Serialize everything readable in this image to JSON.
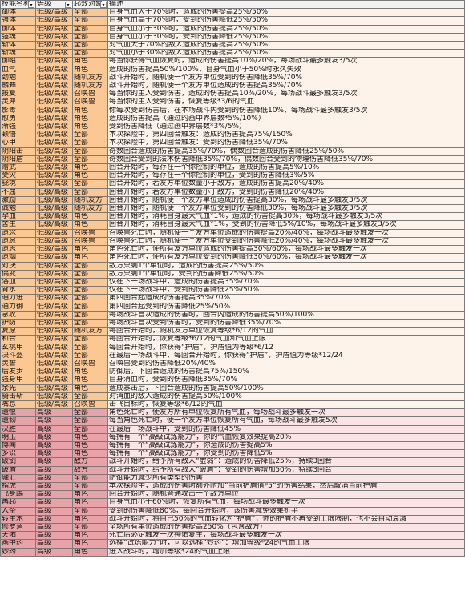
{
  "headers": {
    "name": "技能名称",
    "level": "等级",
    "target": "起效对象",
    "desc": "描述"
  },
  "rows": [
    {
      "n": "御体",
      "l": "低级/高级",
      "t": "全部",
      "d": "自身气血大于70%时，造成的伤害提高25%/50%",
      "c": "o"
    },
    {
      "n": "强体",
      "l": "低级/高级",
      "t": "全部",
      "d": "自身气血高于70%时，受到的伤害降低25%/50%",
      "c": "o"
    },
    {
      "n": "御体",
      "l": "低级/高级",
      "t": "全部",
      "d": "自身气血小于30%时，造成的伤害提高25%/50%",
      "c": "o"
    },
    {
      "n": "强魂",
      "l": "低级/高级",
      "t": "全部",
      "d": "自身气血小于30%时，受到的伤害降低25%/50%",
      "c": "o"
    },
    {
      "n": "斩体",
      "l": "低级/高级",
      "t": "全部",
      "d": "对气血大于70%的敌人造成的伤害提高25%/50%",
      "c": "o"
    },
    {
      "n": "斩魂",
      "l": "低级/高级",
      "t": "全部",
      "d": "对气血小于30%的敌人造成的伤害提高25%/50%",
      "c": "o"
    },
    {
      "n": "御昭",
      "l": "低级/高级",
      "t": "角色",
      "d": "每当你获得气血恢复时，造成的伤害提高10%/20%，每场战斗最多触发3/5次",
      "c": "o"
    },
    {
      "n": "血气",
      "l": "低级/高级",
      "t": "角色",
      "d": "造成的伤害提高50%/100%，自身气血小于50%时永久失效",
      "c": "o"
    },
    {
      "n": "劲勉",
      "l": "低级/高级",
      "t": "随机友方",
      "d": "战斗开始时，随机使一个友方单位受到的伤害降低35%/70%",
      "c": "o"
    },
    {
      "n": "麟舞",
      "l": "低级/高级",
      "t": "随机友方",
      "d": "战斗开始时，随机使一个友方单位造成的伤害提高35%/70%",
      "c": "o"
    },
    {
      "n": "报复",
      "l": "低级/高级",
      "t": "召唤兽",
      "d": "每当你的主人受到伤害，造成的伤害提高10%/20%，每场战斗最多触发3/5次",
      "c": "o"
    },
    {
      "n": "灵犀",
      "l": "低级/高级",
      "t": "召唤兽",
      "d": "每当你的主人受到伤害，恢复等级*3/6的气血",
      "c": "o"
    },
    {
      "n": "影毒",
      "l": "低级/高级",
      "t": "角色",
      "d": "你每次受到伤害后，在本场战斗内受到的伤害降低10%，每场战斗最多触发3/5次",
      "c": "o"
    },
    {
      "n": "愈勇",
      "l": "低级/高级",
      "t": "角色",
      "d": "造成的伤害提高（通过的画中界层数*5%/10%）",
      "c": "o"
    },
    {
      "n": "渐强",
      "l": "低级/高级",
      "t": "角色",
      "d": "受到伤害降低（通过画中界层数*3%/5%）",
      "c": "o"
    },
    {
      "n": "顿悟",
      "l": "低级/高级",
      "t": "全部",
      "d": "本次探险中，第四回合触发：造成的伤害提高75%/150%",
      "c": "o"
    },
    {
      "n": "心甲",
      "l": "低级/高级",
      "t": "全部",
      "d": "本次探险中，第四回合触发：受到的伤害降低35%/70%",
      "c": "o"
    },
    {
      "n": "阴阳击",
      "l": "低级/高级",
      "t": "全部",
      "d": "奇数回合造成的伤害提高35%/70%，偶数回合造成的伤害降低25%/50%",
      "c": "o"
    },
    {
      "n": "阴阳盾",
      "l": "低级/高级",
      "t": "全部",
      "d": "奇数回合受到的法术伤害降低35%/70%，偶数回合受到的物理伤害降低35%/70%",
      "c": "o"
    },
    {
      "n": "赠武",
      "l": "低级/高级",
      "t": "角色",
      "d": "回合开始时，每存在一个你控制的单位，造成的伤害提高5%/10%",
      "c": "o"
    },
    {
      "n": "受灾",
      "l": "低级/高级",
      "t": "角色",
      "d": "回合开始时，每存在一个你控制的单位，受到的伤害降低3%/5%",
      "c": "o"
    },
    {
      "n": "骁境",
      "l": "低级/高级",
      "t": "全部",
      "d": "回合开始时，若友方单位数量小于敌方，造成的伤害提高20%/40%",
      "c": "o"
    },
    {
      "n": "不屈",
      "l": "低级/高级",
      "t": "全部",
      "d": "回合开始时，若友方单位数量小于敌方，受到的伤害降低20%/40%",
      "c": "o"
    },
    {
      "n": "激励",
      "l": "低级/高级",
      "t": "随机友方",
      "d": "回合开始时，随机使一个友方单位造成的伤害提高30%，每场战斗最多触发3/5次",
      "c": "o"
    },
    {
      "n": "诚勉",
      "l": "低级/高级",
      "t": "随机友方",
      "d": "回合开始时，随机使一个友方单位受到的伤害降低30%，每场战斗最多触发3/5次",
      "c": "o"
    },
    {
      "n": "孕血",
      "l": "低级/高级",
      "t": "角色",
      "d": "回合开始时，消耗自身最大气血*1%，造成的伤害提高30%，每场战斗最多触发3/5次",
      "c": "o"
    },
    {
      "n": "舍生",
      "l": "低级/高级",
      "t": "角色",
      "d": "回合开始时，消耗自身最大气血*1%，受到的伤害降低5%/10%，每场战斗最多触发3/5次",
      "c": "o"
    },
    {
      "n": "遗念",
      "l": "低级/高级",
      "t": "召唤兽",
      "d": "召唤兽死亡时，随机使一个友方单位造成的伤害提高20%/40%，每场战斗最多触发一次",
      "c": "o"
    },
    {
      "n": "遗愿",
      "l": "低级/高级",
      "t": "召唤兽",
      "d": "召唤兽死亡时，随机使一个友方单位受到的伤害降低20%/40%，每场战斗最多触发一次",
      "c": "o"
    },
    {
      "n": "遗志",
      "l": "低级/高级",
      "t": "角色",
      "d": "角色死亡时，使所有友方单位造成的伤害提高30%/60%，每场战斗最多触发一次",
      "c": "o"
    },
    {
      "n": "遗烟",
      "l": "低级/高级",
      "t": "角色",
      "d": "角色死亡时，使所有友方单位受到的伤害降低30%/60%，每场战斗最多触发一次",
      "c": "o"
    },
    {
      "n": "对决",
      "l": "低级/高级",
      "t": "全部",
      "d": "敌方只剩1个单位时，造成的伤害提高25%/50%",
      "c": "o"
    },
    {
      "n": "偶变",
      "l": "低级/高级",
      "t": "全部",
      "d": "敌方只剩1个单位时，受到的伤害降低25%/50%",
      "c": "o"
    },
    {
      "n": "浴血",
      "l": "低级/高级",
      "t": "全部",
      "d": "仅在下一场战斗中，造成的伤害提高35%/70%",
      "c": "o"
    },
    {
      "n": "背水",
      "l": "低级/高级",
      "t": "全部",
      "d": "仅在下一场战斗中，受到的伤害降低25%/50%",
      "c": "o"
    },
    {
      "n": "通力进",
      "l": "低级/高级",
      "t": "全部",
      "d": "第四回合起造成的伤害提高35%/70%",
      "c": "o"
    },
    {
      "n": "通力御",
      "l": "低级/高级",
      "t": "全部",
      "d": "第四回合起受到的伤害降低25%/50%",
      "c": "o"
    },
    {
      "n": "急攻",
      "l": "低级/高级",
      "t": "全部",
      "d": "每场战斗首次造成的伤害时，回合内造成的伤害提高50%/100%",
      "c": "o"
    },
    {
      "n": "护防",
      "l": "低级/高级",
      "t": "全部",
      "d": "每场战斗首次受到伤害时，受到的伤害降低35%/70%",
      "c": "o"
    },
    {
      "n": "复原",
      "l": "低级/高级",
      "t": "随机友方",
      "d": "每回合开始时，随机友方单位恢复等级*6/12的气血",
      "c": "o"
    },
    {
      "n": "和合",
      "l": "低级/高级",
      "t": "全部",
      "d": "每回合开始时，恢复等级*6/12的气血和气血上限",
      "c": "o"
    },
    {
      "n": "玄桃甲",
      "l": "低级/高级",
      "t": "全部",
      "d": "每回合开始时，你获得“护盾”，护盾值为等级*6/12",
      "c": "o"
    },
    {
      "n": "决斗盔",
      "l": "低级/高级",
      "t": "全部",
      "d": "在最后一场战斗中，每回合开始时，你获得“护盾”，护盾值为等级*12/24",
      "c": "o"
    },
    {
      "n": "灵誓",
      "l": "低级/高级",
      "t": "召唤兽",
      "d": "召唤兽受到的伤害降低20%/40%",
      "c": "o"
    },
    {
      "n": "后发步",
      "l": "低级/高级",
      "t": "角色",
      "d": "防御后，下回合造成的伤害提高75%/150%",
      "c": "o"
    },
    {
      "n": "强身甲",
      "l": "低级/高级",
      "t": "角色",
      "d": "自身消血时，受到的伤害降低35%/70%",
      "c": "o"
    },
    {
      "n": "余光",
      "l": "低级/高级",
      "t": "角色",
      "d": "造成暴击后，下回合造成的伤害提高50%/100%",
      "c": "o"
    },
    {
      "n": "骑击斩",
      "l": "低级/高级",
      "t": "全部",
      "d": "对消血的敌人造成的伤害提高50%/100%",
      "c": "o"
    },
    {
      "n": "嘴息",
      "l": "低级/高级",
      "t": "召唤兽",
      "d": "击飞目标时，恢复等级*6/12的气血",
      "c": "o"
    },
    {
      "n": "遗恨",
      "l": "高级",
      "t": "全部",
      "d": "角色死亡时，使友方所有单位恢复所有气血，每场战斗最多触发一次",
      "c": "p"
    },
    {
      "n": "遗韧",
      "l": "高级",
      "t": "全部",
      "d": "每当角色死亡时，使一个友方单位恢复所有气血，每场战斗最多触发5次",
      "c": "p"
    },
    {
      "n": "决胜",
      "l": "高级",
      "t": "全部",
      "d": "在最后一场战斗中，受到的伤害降低45%",
      "c": "p"
    },
    {
      "n": "明玉",
      "l": "高级",
      "t": "角色",
      "d": "每拥有一个“高级试炼能力”，你的气血恢复效果提高20%",
      "c": "p"
    },
    {
      "n": "博闻",
      "l": "高级",
      "t": "角色",
      "d": "每拥有一个“高级试炼能力”，你造成的伤害提高5%",
      "c": "p"
    },
    {
      "n": "多识",
      "l": "高级",
      "t": "角色",
      "d": "每拥有一个“高级试炼能力”，你受到的伤害降低5%",
      "c": "p"
    },
    {
      "n": "破剑",
      "l": "高级",
      "t": "敌方",
      "d": "战斗开始时，给予所有敌人“虚弱”：造成的伤害降低25%，持续3回合",
      "c": "p"
    },
    {
      "n": "破盾",
      "l": "高级",
      "t": "敌方",
      "d": "战斗开始时，给予所有敌人“破盾”：受到的伤害增加50%，持续3回合",
      "c": "p"
    },
    {
      "n": "融汇",
      "l": "高级",
      "t": "全部",
      "d": "防御能力减少所有类型的伤害",
      "c": "p"
    },
    {
      "n": "指虎",
      "l": "高级",
      "t": "全部",
      "d": "本次探险中，造成的伤害时额外附加“当前护盾值*5”的伤害结果，然后取消当前护盾",
      "c": "p"
    },
    {
      "n": "飞身踢",
      "l": "高级",
      "t": "角色",
      "d": "回合开始时，随机普通攻击一个敌方单位",
      "c": "p"
    },
    {
      "n": "再起",
      "l": "高级",
      "t": "角色",
      "d": "自身气血小于60%时，恢复所有气血，每场战斗最多触发一次",
      "c": "p"
    },
    {
      "n": "入圣",
      "l": "高级",
      "t": "全部",
      "d": "受到的伤害降低80%，每回合开始时，该伤害减免效果折半",
      "c": "p"
    },
    {
      "n": "转生术",
      "l": "高级",
      "t": "角色",
      "d": "战斗开始时，将自己50%的气血转化为“护盾”，你的护盾不再受到上限限制，也不会自动衰减",
      "c": "p"
    },
    {
      "n": "修罗道",
      "l": "高级",
      "t": "全部",
      "d": "全场所有单位造成的伤害提高250%（包含敌方）",
      "c": "p"
    },
    {
      "n": "天佑",
      "l": "高级",
      "t": "角色",
      "d": "死亡后必定触发一次神佑复生，每场战斗最多触发一次",
      "c": "p"
    },
    {
      "n": "画中药",
      "l": "高级",
      "t": "角色",
      "d": "选择“试炼能力”时，可以选择“妙药”：增加等级*24的气血上限",
      "c": "p"
    },
    {
      "n": "妙药",
      "l": "高级",
      "t": "角色",
      "d": "进入战斗时，增加等级*24的气血上限",
      "c": "p"
    }
  ]
}
